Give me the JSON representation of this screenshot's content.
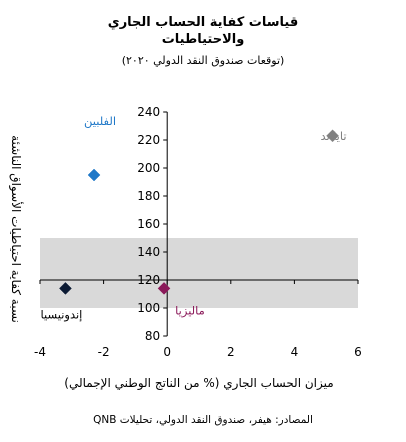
{
  "chart_data": {
    "type": "scatter",
    "title_lines": [
      "قياسات كفاية الحساب الجاري",
      "والاحتياطيات"
    ],
    "subtitle": "(توقعات صندوق النقد الدولي ٢٠٢٠)",
    "xlabel": "ميزان الحساب الجاري (% من الناتج الوطني الإجمالي)",
    "ylabel": "نسبة كفاية احتياطيات الأسواق الناشئة",
    "xlim": [
      -4,
      6
    ],
    "ylim": [
      80,
      240
    ],
    "xticks": [
      -4,
      -2,
      0,
      2,
      4,
      6
    ],
    "yticks": [
      80,
      100,
      120,
      140,
      160,
      180,
      200,
      220,
      240
    ],
    "band": {
      "y_from": 100,
      "y_to": 150,
      "color": "#d9d9d9"
    },
    "series": [
      {
        "name": "تايلاند",
        "x": 5.2,
        "y": 223,
        "color": "#808080"
      },
      {
        "name": "الفلبين",
        "x": -2.3,
        "y": 195,
        "color": "#1f78c8"
      },
      {
        "name": "إندونيسيا",
        "x": -3.2,
        "y": 114,
        "color": "#0b1a33"
      },
      {
        "name": "ماليزيا",
        "x": -0.1,
        "y": 114,
        "color": "#8b1a5a"
      }
    ],
    "source": "المصادر: هيفر، صندوق النقد الدولي، تحليلات QNB"
  }
}
